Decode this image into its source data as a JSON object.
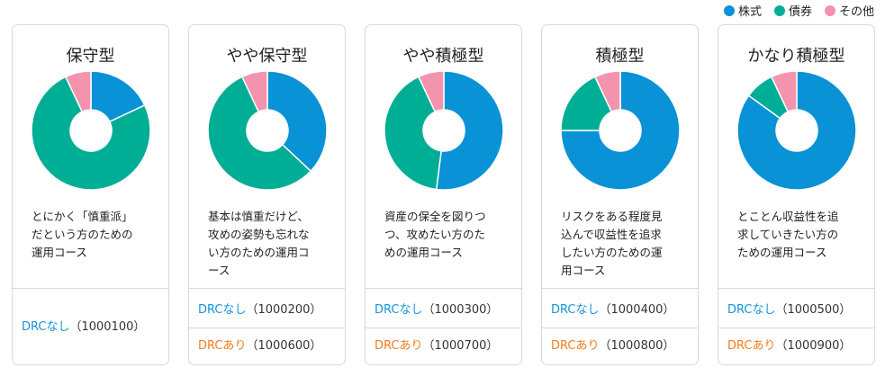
{
  "legend": [
    {
      "label": "株式",
      "color": "#0a92d6"
    },
    {
      "label": "債券",
      "color": "#00ae96"
    },
    {
      "label": "その他",
      "color": "#f493ad"
    }
  ],
  "colors": {
    "stock": "#0a92d6",
    "bond": "#00ae96",
    "other": "#f493ad",
    "drc_none": "#1493d6",
    "drc_yes": "#f07d1e"
  },
  "chart_data": [
    {
      "type": "pie",
      "title": "保守型",
      "categories": [
        "株式",
        "債券",
        "その他"
      ],
      "values": [
        18,
        75,
        7
      ]
    },
    {
      "type": "pie",
      "title": "やや保守型",
      "categories": [
        "株式",
        "債券",
        "その他"
      ],
      "values": [
        37,
        56,
        7
      ]
    },
    {
      "type": "pie",
      "title": "やや積極型",
      "categories": [
        "株式",
        "債券",
        "その他"
      ],
      "values": [
        52,
        41,
        7
      ]
    },
    {
      "type": "pie",
      "title": "積極型",
      "categories": [
        "株式",
        "債券",
        "その他"
      ],
      "values": [
        75,
        18,
        7
      ]
    },
    {
      "type": "pie",
      "title": "かなり積極型",
      "categories": [
        "株式",
        "債券",
        "その他"
      ],
      "values": [
        85,
        8,
        7
      ]
    }
  ],
  "cards": [
    {
      "title": "保守型",
      "desc": [
        "とにかく「慎重派」",
        "だという方のための",
        "運用コース"
      ],
      "links": [
        {
          "label": "DRCなし",
          "code": "（1000100）",
          "kind": "none"
        }
      ]
    },
    {
      "title": "やや保守型",
      "desc": [
        "基本は慎重だけど、",
        "攻めの姿勢も忘れな",
        "い方のための運用コ",
        "ース"
      ],
      "links": [
        {
          "label": "DRCなし",
          "code": "（1000200）",
          "kind": "none"
        },
        {
          "label": "DRCあり",
          "code": "（1000600）",
          "kind": "yes"
        }
      ]
    },
    {
      "title": "やや積極型",
      "desc": [
        "資産の保全を図りつ",
        "つ、攻めたい方のた",
        "めの運用コース"
      ],
      "links": [
        {
          "label": "DRCなし",
          "code": "（1000300）",
          "kind": "none"
        },
        {
          "label": "DRCあり",
          "code": "（1000700）",
          "kind": "yes"
        }
      ]
    },
    {
      "title": "積極型",
      "desc": [
        "リスクをある程度見",
        "込んで収益性を追求",
        "したい方のための運",
        "用コース"
      ],
      "links": [
        {
          "label": "DRCなし",
          "code": "（1000400）",
          "kind": "none"
        },
        {
          "label": "DRCあり",
          "code": "（1000800）",
          "kind": "yes"
        }
      ]
    },
    {
      "title": "かなり積極型",
      "desc": [
        "とことん収益性を追",
        "求していきたい方の",
        "ための運用コース"
      ],
      "links": [
        {
          "label": "DRCなし",
          "code": "（1000500）",
          "kind": "none"
        },
        {
          "label": "DRCあり",
          "code": "（1000900）",
          "kind": "yes"
        }
      ]
    }
  ]
}
